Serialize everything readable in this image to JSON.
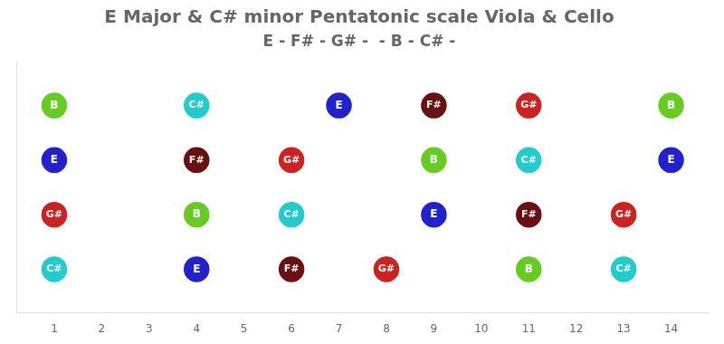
{
  "chart_data": {
    "type": "scatter",
    "title": "E Major & C# minor Pentatonic scale Viola & Cello",
    "subtitle": "E - F# - G# -  - B - C# -",
    "x": [
      1,
      4,
      7,
      9,
      11,
      14,
      1,
      4,
      6,
      9,
      11,
      14,
      1,
      4,
      6,
      9,
      11,
      13,
      1,
      4,
      6,
      8,
      11,
      13
    ],
    "values": [
      4,
      4,
      4,
      4,
      4,
      4,
      3,
      3,
      3,
      3,
      3,
      3,
      2,
      2,
      2,
      2,
      2,
      2,
      1,
      1,
      1,
      1,
      1,
      1
    ],
    "labels": [
      "B",
      "C#",
      "E",
      "F#",
      "G#",
      "B",
      "E",
      "F#",
      "G#",
      "B",
      "C#",
      "E",
      "G#",
      "B",
      "C#",
      "E",
      "F#",
      "G#",
      "C#",
      "E",
      "F#",
      "G#",
      "B",
      "C#"
    ],
    "colors": [
      "#66cc22",
      "#22cccc",
      "#2222cc",
      "#6b1010",
      "#cc2222",
      "#66cc22",
      "#2222cc",
      "#6b1010",
      "#cc2222",
      "#66cc22",
      "#22cccc",
      "#2222cc",
      "#cc2222",
      "#66cc22",
      "#22cccc",
      "#2222cc",
      "#6b1010",
      "#cc2222",
      "#22cccc",
      "#2222cc",
      "#6b1010",
      "#cc2222",
      "#66cc22",
      "#22cccc"
    ],
    "xlim": [
      0.2,
      14.8
    ],
    "xticks": [
      1,
      2,
      3,
      4,
      5,
      6,
      7,
      8,
      9,
      10,
      11,
      12,
      13,
      14
    ],
    "ylim": [
      0.2,
      4.8
    ],
    "tick_labels": "x",
    "grid": false
  }
}
